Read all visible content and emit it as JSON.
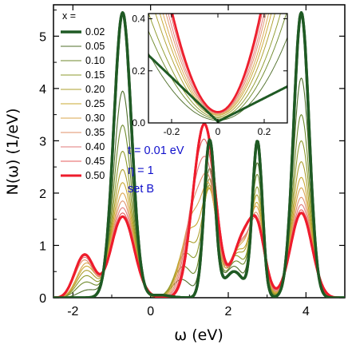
{
  "chart_data": {
    "type": "line",
    "xlabel": "ω (eV)",
    "ylabel": "N(ω)  (1/eV)",
    "xlim": [
      -2.5,
      5.0
    ],
    "ylim": [
      0,
      5.6
    ],
    "xticks": [
      "-2",
      "0",
      "2",
      "4"
    ],
    "yticks": [
      "0",
      "1",
      "2",
      "3",
      "4",
      "5"
    ],
    "grid": false,
    "legend_title": "x =",
    "legend_position": "top-left",
    "annotations": [
      "t = 0.01 eV",
      "η = 1",
      "set B"
    ],
    "series": [
      {
        "name": "0.02",
        "color": "#1f5a24",
        "width": 3.5,
        "bands": [
          [
            -0.72,
            5.45,
            0.32
          ],
          [
            1.52,
            3.0,
            0.2
          ],
          [
            2.75,
            2.97,
            0.18
          ],
          [
            3.88,
            5.45,
            0.28
          ]
        ],
        "gaps": [
          [
            -2.3,
            0.0,
            0.0
          ],
          [
            0.25,
            0.05,
            0.0
          ],
          [
            2.15,
            0.5,
            0.0
          ],
          [
            4.7,
            0.0,
            0.0
          ]
        ]
      },
      {
        "name": "0.05",
        "color": "#4f6f2a",
        "width": 1.1,
        "bands": [
          [
            -0.72,
            3.95,
            0.33
          ],
          [
            1.52,
            2.45,
            0.22
          ],
          [
            2.75,
            2.55,
            0.2
          ],
          [
            3.88,
            4.2,
            0.3
          ]
        ],
        "gaps": [
          [
            -1.6,
            0.15,
            0.0
          ],
          [
            0.8,
            0.35,
            0.0
          ],
          [
            2.15,
            0.6,
            0.0
          ]
        ]
      },
      {
        "name": "0.10",
        "color": "#6f8a2c",
        "width": 1.1,
        "bands": [
          [
            -0.72,
            3.3,
            0.34
          ],
          [
            1.52,
            2.25,
            0.24
          ],
          [
            2.75,
            2.3,
            0.21
          ],
          [
            3.88,
            3.5,
            0.31
          ]
        ],
        "gaps": [
          [
            -1.65,
            0.3,
            0.0
          ],
          [
            0.85,
            0.6,
            0.0
          ],
          [
            2.2,
            0.7,
            0.0
          ]
        ]
      },
      {
        "name": "0.15",
        "color": "#8e9a2c",
        "width": 1.1,
        "bands": [
          [
            -0.72,
            2.8,
            0.35
          ],
          [
            1.52,
            2.1,
            0.26
          ],
          [
            2.75,
            2.05,
            0.22
          ],
          [
            3.88,
            3.0,
            0.32
          ]
        ],
        "gaps": [
          [
            -1.65,
            0.42,
            0.0
          ],
          [
            0.9,
            0.85,
            0.0
          ],
          [
            2.2,
            0.8,
            0.0
          ]
        ]
      },
      {
        "name": "0.20",
        "color": "#ad9f2e",
        "width": 1.1,
        "bands": [
          [
            -0.72,
            2.45,
            0.36
          ],
          [
            1.52,
            2.0,
            0.27
          ],
          [
            2.75,
            1.85,
            0.23
          ],
          [
            3.88,
            2.6,
            0.33
          ]
        ],
        "gaps": [
          [
            -1.65,
            0.52,
            0.0
          ],
          [
            0.95,
            1.05,
            0.0
          ],
          [
            2.25,
            0.85,
            0.0
          ]
        ]
      },
      {
        "name": "0.25",
        "color": "#c9a832",
        "width": 1.1,
        "bands": [
          [
            -0.72,
            2.2,
            0.37
          ],
          [
            1.52,
            1.95,
            0.28
          ],
          [
            2.75,
            1.7,
            0.24
          ],
          [
            3.88,
            2.3,
            0.34
          ]
        ],
        "gaps": [
          [
            -1.65,
            0.6,
            0.0
          ],
          [
            1.0,
            1.25,
            0.0
          ],
          [
            2.25,
            0.9,
            0.0
          ]
        ]
      },
      {
        "name": "0.30",
        "color": "#d9a54e",
        "width": 1.1,
        "bands": [
          [
            -0.72,
            2.0,
            0.38
          ],
          [
            1.52,
            1.92,
            0.29
          ],
          [
            2.75,
            1.55,
            0.25
          ],
          [
            3.88,
            2.1,
            0.35
          ]
        ],
        "gaps": [
          [
            -1.65,
            0.66,
            0.0
          ],
          [
            1.05,
            1.45,
            0.0
          ],
          [
            2.3,
            0.95,
            0.0
          ]
        ]
      },
      {
        "name": "0.35",
        "color": "#e0916a",
        "width": 1.1,
        "bands": [
          [
            -0.72,
            1.85,
            0.39
          ],
          [
            1.52,
            1.9,
            0.3
          ],
          [
            2.75,
            1.42,
            0.26
          ],
          [
            3.88,
            1.92,
            0.36
          ]
        ],
        "gaps": [
          [
            -1.7,
            0.72,
            0.0
          ],
          [
            1.1,
            1.6,
            0.0
          ],
          [
            2.3,
            0.98,
            0.0
          ]
        ]
      },
      {
        "name": "0.40",
        "color": "#e27a7a",
        "width": 1.1,
        "bands": [
          [
            -0.72,
            1.72,
            0.4
          ],
          [
            1.52,
            1.88,
            0.31
          ],
          [
            2.75,
            1.32,
            0.27
          ],
          [
            3.88,
            1.78,
            0.37
          ]
        ],
        "gaps": [
          [
            -1.7,
            0.77,
            0.0
          ],
          [
            1.15,
            1.8,
            0.0
          ],
          [
            2.3,
            1.0,
            0.0
          ]
        ]
      },
      {
        "name": "0.45",
        "color": "#e45c5c",
        "width": 1.1,
        "bands": [
          [
            -0.72,
            1.62,
            0.41
          ],
          [
            1.52,
            1.86,
            0.32
          ],
          [
            2.75,
            1.25,
            0.28
          ],
          [
            3.88,
            1.68,
            0.38
          ]
        ],
        "gaps": [
          [
            -1.7,
            0.8,
            0.0
          ],
          [
            1.2,
            1.95,
            0.0
          ],
          [
            2.35,
            1.02,
            0.0
          ]
        ]
      },
      {
        "name": "0.50",
        "color": "#ee1c2c",
        "width": 3.0,
        "bands": [
          [
            -0.72,
            1.55,
            0.42
          ],
          [
            1.52,
            1.84,
            0.33
          ],
          [
            2.75,
            1.2,
            0.29
          ],
          [
            3.88,
            1.62,
            0.39
          ]
        ],
        "gaps": [
          [
            -1.7,
            0.82,
            0.0
          ],
          [
            1.25,
            2.05,
            0.0
          ],
          [
            2.35,
            1.05,
            0.0
          ]
        ]
      }
    ],
    "inset": {
      "xlim": [
        -0.3,
        0.3
      ],
      "ylim": [
        0.0,
        0.42
      ],
      "xticks": [
        "-0.2",
        "0",
        "0.2"
      ],
      "yticks": [
        "0.0",
        "0.2",
        "0.4"
      ],
      "minima": [
        0.005,
        0.01,
        0.015,
        0.02,
        0.025,
        0.03,
        0.033,
        0.036,
        0.038,
        0.04,
        0.042
      ],
      "curvatures": [
        1.9,
        3.2,
        4.2,
        5.0,
        6.0,
        6.8,
        7.5,
        8.3,
        9.0,
        9.8,
        10.5
      ]
    }
  }
}
